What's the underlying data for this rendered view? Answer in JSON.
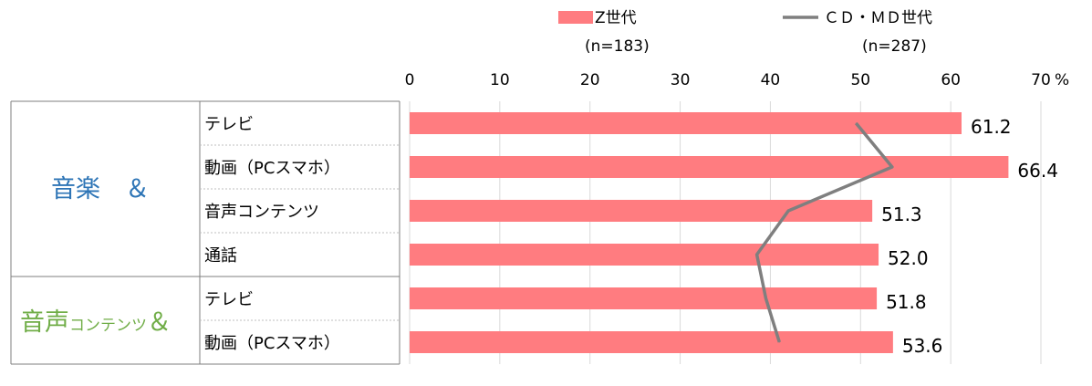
{
  "chart_data": {
    "type": "bar",
    "orientation": "horizontal",
    "xlim": [
      0,
      70
    ],
    "ticks": [
      "0",
      "10",
      "20",
      "30",
      "40",
      "50",
      "60",
      "70"
    ],
    "unit": "%",
    "grid": true,
    "legend_placement": "top",
    "groups": [
      {
        "label": "音楽　＆",
        "label_color": "#2e75b6",
        "rows": [
          "テレビ",
          "動画（PCスマホ）",
          "音声コンテンツ",
          "通話"
        ]
      },
      {
        "label_main": "音声",
        "label_small": "コンテンツ",
        "label_amp": "＆",
        "label_color": "#70ad47",
        "rows": [
          "テレビ",
          "動画（PCスマホ）"
        ]
      }
    ],
    "categories": [
      "テレビ",
      "動画（PCスマホ）",
      "音声コンテンツ",
      "通話",
      "テレビ",
      "動画（PCスマホ）"
    ],
    "series": [
      {
        "name": "Z世代",
        "n": "(n=183)",
        "type": "bar",
        "color": "#ff7c80",
        "values": [
          61.2,
          66.4,
          51.3,
          52.0,
          51.8,
          53.6
        ],
        "labels": [
          "61.2",
          "66.4",
          "51.3",
          "52.0",
          "51.8",
          "53.6"
        ]
      },
      {
        "name": "ＣＤ・ＭＤ世代",
        "n": "(n=287)",
        "type": "line",
        "color": "#7f7f7f",
        "values": [
          49.5,
          53.5,
          42.0,
          38.5,
          39.5,
          41.0
        ]
      }
    ]
  }
}
